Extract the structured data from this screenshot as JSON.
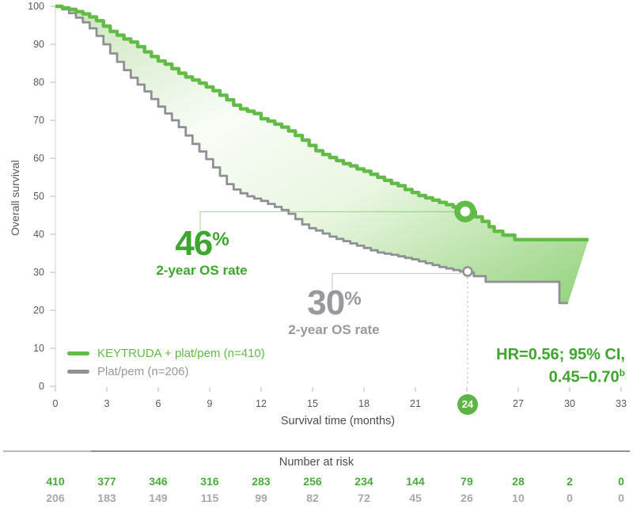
{
  "colors": {
    "green_curve": "#62bb46",
    "green_text": "#3ea52f",
    "green_badge": "#5cb544",
    "gray_curve": "#8e9093",
    "gray_text": "#97999c",
    "axis_text": "#58595b",
    "at_risk_green": "#4aab3d",
    "at_risk_gray": "#a6a8ab",
    "callout_green": "rgba(98,187,70,0.5)",
    "callout_gray": "#cccdce"
  },
  "y_axis": {
    "label": "Overall survival",
    "ticks": [
      0,
      10,
      20,
      30,
      40,
      50,
      60,
      70,
      80,
      90,
      100
    ]
  },
  "x_axis": {
    "label": "Survival time (months)",
    "ticks": [
      0,
      3,
      6,
      9,
      12,
      15,
      18,
      21,
      24,
      27,
      30,
      33
    ],
    "highlighted_tick": 24
  },
  "legend": {
    "keytruda_label": "KEYTRUDA + plat/pem (n=410)",
    "control_label": "Plat/pem (n=206)"
  },
  "annotations": {
    "keytruda_rate": {
      "value": "46",
      "percent": "%",
      "caption": "2-year OS rate"
    },
    "control_rate": {
      "value": "30",
      "percent": "%",
      "caption": "2-year OS rate"
    },
    "hr_line1": "HR=0.56; 95% CI,",
    "hr_line2": "0.45–0.70",
    "hr_superscript": "b"
  },
  "number_at_risk": {
    "title": "Number at risk",
    "keytruda_row": [
      410,
      377,
      346,
      316,
      283,
      256,
      234,
      144,
      79,
      28,
      2,
      0
    ],
    "control_row": [
      206,
      183,
      149,
      115,
      99,
      82,
      72,
      45,
      26,
      10,
      0,
      0
    ]
  },
  "chart_data": {
    "type": "line",
    "subtype": "kaplan-meier-step",
    "title": "",
    "xlabel": "Survival time (months)",
    "ylabel": "Overall survival",
    "xlim": [
      0,
      33
    ],
    "ylim": [
      0,
      100
    ],
    "x_ticks": [
      0,
      3,
      6,
      9,
      12,
      15,
      18,
      21,
      24,
      27,
      30,
      33
    ],
    "y_ticks": [
      0,
      10,
      20,
      30,
      40,
      50,
      60,
      70,
      80,
      90,
      100
    ],
    "legend_position": "lower-left",
    "grid": false,
    "hazard_ratio_text": "HR=0.56; 95% CI, 0.45–0.70",
    "markers": [
      {
        "series": "KEYTRUDA + plat/pem (n=410)",
        "month": 24,
        "value": 46,
        "label": "2-year OS rate 46%"
      },
      {
        "series": "Plat/pem (n=206)",
        "month": 24,
        "value": 30,
        "label": "2-year OS rate 30%"
      }
    ],
    "series": [
      {
        "name": "KEYTRUDA + plat/pem (n=410)",
        "color": "#62bb46",
        "two_year_os_rate_pct": 46,
        "points": [
          [
            0,
            100
          ],
          [
            0.4,
            99.6
          ],
          [
            0.8,
            99.2
          ],
          [
            1.2,
            98.6
          ],
          [
            1.6,
            98
          ],
          [
            2,
            97.2
          ],
          [
            2.4,
            96.2
          ],
          [
            2.8,
            94.8
          ],
          [
            3.2,
            93.4
          ],
          [
            3.6,
            92.4
          ],
          [
            4,
            91.4
          ],
          [
            4.4,
            90.6
          ],
          [
            4.8,
            89.4
          ],
          [
            5.2,
            88
          ],
          [
            5.6,
            86.8
          ],
          [
            6,
            85.6
          ],
          [
            6.4,
            84.8
          ],
          [
            6.8,
            83.6
          ],
          [
            7.2,
            82.4
          ],
          [
            7.6,
            81.4
          ],
          [
            8,
            80.6
          ],
          [
            8.4,
            79.8
          ],
          [
            8.8,
            78.8
          ],
          [
            9.2,
            77.8
          ],
          [
            9.6,
            76.6
          ],
          [
            10,
            75.4
          ],
          [
            10.4,
            74
          ],
          [
            10.8,
            73
          ],
          [
            11.2,
            72.4
          ],
          [
            11.6,
            71.8
          ],
          [
            12,
            70.4
          ],
          [
            12.4,
            69.8
          ],
          [
            12.8,
            69
          ],
          [
            13.2,
            68.2
          ],
          [
            13.6,
            67.2
          ],
          [
            14,
            66
          ],
          [
            14.4,
            64.8
          ],
          [
            14.8,
            63.4
          ],
          [
            15.2,
            62
          ],
          [
            15.6,
            61
          ],
          [
            16,
            60.2
          ],
          [
            16.4,
            59.4
          ],
          [
            16.8,
            58.6
          ],
          [
            17.2,
            58
          ],
          [
            17.6,
            57.2
          ],
          [
            18,
            56.6
          ],
          [
            18.4,
            55.8
          ],
          [
            18.8,
            55
          ],
          [
            19.2,
            54.2
          ],
          [
            19.6,
            53.4
          ],
          [
            20,
            52.8
          ],
          [
            20.4,
            51.8
          ],
          [
            20.8,
            51
          ],
          [
            21.2,
            50.2
          ],
          [
            21.6,
            49.6
          ],
          [
            22,
            49
          ],
          [
            22.4,
            48.4
          ],
          [
            22.8,
            47.8
          ],
          [
            23.2,
            47.2
          ],
          [
            23.6,
            46.6
          ],
          [
            24,
            46
          ],
          [
            24.5,
            44.6
          ],
          [
            24.9,
            43.4
          ],
          [
            25.3,
            42
          ],
          [
            25.6,
            40.8
          ],
          [
            26.1,
            39.8
          ],
          [
            26.8,
            38.6
          ],
          [
            31.1,
            38.6
          ]
        ]
      },
      {
        "name": "Plat/pem (n=206)",
        "color": "#8e9093",
        "two_year_os_rate_pct": 30,
        "points": [
          [
            0,
            100
          ],
          [
            0.4,
            99.2
          ],
          [
            0.8,
            98.2
          ],
          [
            1.2,
            97
          ],
          [
            1.6,
            95.8
          ],
          [
            2,
            94.2
          ],
          [
            2.4,
            92.2
          ],
          [
            2.8,
            90
          ],
          [
            3.2,
            87.6
          ],
          [
            3.6,
            85.4
          ],
          [
            4,
            83.2
          ],
          [
            4.4,
            81.2
          ],
          [
            4.8,
            79.4
          ],
          [
            5.2,
            77.6
          ],
          [
            5.6,
            75.6
          ],
          [
            6,
            73.6
          ],
          [
            6.4,
            71.8
          ],
          [
            6.8,
            70
          ],
          [
            7.2,
            68.2
          ],
          [
            7.6,
            66
          ],
          [
            8,
            63.8
          ],
          [
            8.4,
            61.8
          ],
          [
            8.8,
            59.8
          ],
          [
            9.2,
            57.6
          ],
          [
            9.6,
            55.4
          ],
          [
            10,
            53.2
          ],
          [
            10.4,
            51.8
          ],
          [
            10.8,
            50.8
          ],
          [
            11.2,
            50
          ],
          [
            11.6,
            49.4
          ],
          [
            12,
            48.8
          ],
          [
            12.4,
            48
          ],
          [
            12.8,
            47.2
          ],
          [
            13.2,
            46.4
          ],
          [
            13.6,
            45.4
          ],
          [
            14,
            44
          ],
          [
            14.4,
            42.6
          ],
          [
            14.8,
            41.6
          ],
          [
            15.2,
            41
          ],
          [
            15.6,
            40.2
          ],
          [
            16,
            39.4
          ],
          [
            16.4,
            38.8
          ],
          [
            16.8,
            38.2
          ],
          [
            17.2,
            37.6
          ],
          [
            17.6,
            37
          ],
          [
            18,
            36.4
          ],
          [
            18.4,
            35.8
          ],
          [
            18.8,
            35.2
          ],
          [
            19.2,
            34.9
          ],
          [
            19.6,
            34.6
          ],
          [
            20,
            34.2
          ],
          [
            20.4,
            33.8
          ],
          [
            20.8,
            33.4
          ],
          [
            21.2,
            32.9
          ],
          [
            21.6,
            32.4
          ],
          [
            22,
            31.9
          ],
          [
            22.4,
            31.4
          ],
          [
            22.8,
            31
          ],
          [
            23.2,
            30.6
          ],
          [
            23.6,
            30.2
          ],
          [
            24,
            30
          ],
          [
            24.4,
            29
          ],
          [
            25.1,
            27.5
          ],
          [
            29.2,
            27.5
          ],
          [
            29.4,
            21.9
          ],
          [
            29.9,
            21.9
          ]
        ]
      }
    ],
    "number_at_risk": {
      "months": [
        0,
        3,
        6,
        9,
        12,
        15,
        18,
        21,
        24,
        27,
        30,
        33
      ],
      "keytruda": [
        410,
        377,
        346,
        316,
        283,
        256,
        234,
        144,
        79,
        28,
        2,
        0
      ],
      "plat_pem": [
        206,
        183,
        149,
        115,
        99,
        82,
        72,
        45,
        26,
        10,
        0,
        0
      ]
    }
  }
}
